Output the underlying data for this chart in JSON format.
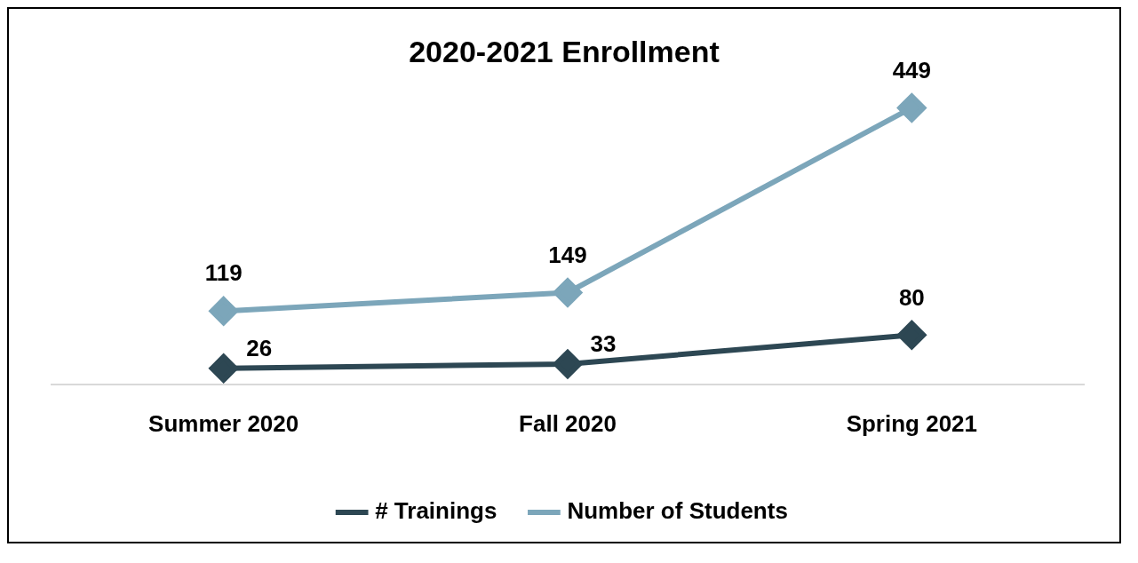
{
  "chart_data": {
    "type": "line",
    "title": "2020-2021 Enrollment",
    "categories": [
      "Summer 2020",
      "Fall 2020",
      "Spring 2021"
    ],
    "series": [
      {
        "name": "# Trainings",
        "color": "#2d4753",
        "values": [
          26,
          33,
          80
        ]
      },
      {
        "name": "Number of Students",
        "color": "#7ca6ba",
        "values": [
          119,
          149,
          449
        ]
      }
    ],
    "relative": false,
    "data_labels": true,
    "legend": "bottom",
    "marker": "diamond",
    "line_style": "solid",
    "grid": false
  }
}
